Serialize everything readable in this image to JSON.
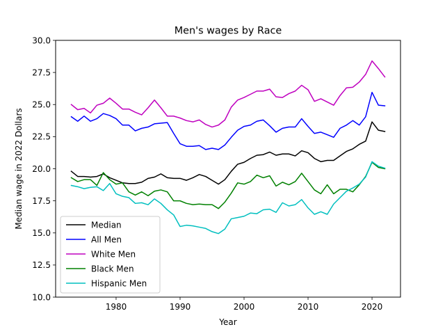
{
  "chart_data": {
    "type": "line",
    "title": "Men's wages by Race",
    "xlabel": "Year",
    "ylabel": "Median wage in 2022 Dollars",
    "xlim": [
      1970.55,
      2024.45
    ],
    "ylim": [
      10.0,
      30.0
    ],
    "xticks": [
      1980,
      1990,
      2000,
      2010,
      2020
    ],
    "yticks": [
      10.0,
      12.5,
      15.0,
      17.5,
      20.0,
      22.5,
      25.0,
      27.5,
      30.0
    ],
    "legend_position": "lower-left",
    "grid": false,
    "x": [
      1973,
      1974,
      1975,
      1976,
      1977,
      1978,
      1979,
      1980,
      1981,
      1982,
      1983,
      1984,
      1985,
      1986,
      1987,
      1988,
      1989,
      1990,
      1991,
      1992,
      1993,
      1994,
      1995,
      1996,
      1997,
      1998,
      1999,
      2000,
      2001,
      2002,
      2003,
      2004,
      2005,
      2006,
      2007,
      2008,
      2009,
      2010,
      2011,
      2012,
      2013,
      2014,
      2015,
      2016,
      2017,
      2018,
      2019,
      2020,
      2021,
      2022
    ],
    "series": [
      {
        "name": "Median",
        "color": "#000000",
        "values": [
          19.8,
          19.4,
          19.4,
          19.35,
          19.4,
          19.6,
          19.3,
          19.1,
          18.9,
          18.85,
          18.85,
          18.95,
          19.25,
          19.35,
          19.6,
          19.3,
          19.25,
          19.25,
          19.1,
          19.3,
          19.55,
          19.4,
          19.1,
          18.8,
          19.15,
          19.8,
          20.35,
          20.5,
          20.8,
          21.05,
          21.1,
          21.3,
          21.05,
          21.15,
          21.15,
          21.0,
          21.4,
          21.25,
          20.8,
          20.55,
          20.65,
          20.65,
          21.0,
          21.35,
          21.55,
          21.9,
          22.15,
          23.65,
          23.0,
          22.9
        ]
      },
      {
        "name": "All Men",
        "color": "#0000ff",
        "values": [
          24.05,
          23.7,
          24.1,
          23.7,
          23.9,
          24.3,
          24.15,
          23.9,
          23.4,
          23.4,
          22.95,
          23.15,
          23.25,
          23.5,
          23.55,
          23.6,
          22.75,
          21.95,
          21.75,
          21.75,
          21.8,
          21.5,
          21.6,
          21.5,
          21.85,
          22.45,
          23.0,
          23.3,
          23.4,
          23.7,
          23.8,
          23.35,
          22.85,
          23.15,
          23.25,
          23.25,
          23.9,
          23.3,
          22.75,
          22.85,
          22.65,
          22.45,
          23.15,
          23.4,
          23.75,
          23.4,
          24.05,
          25.95,
          24.95,
          24.9
        ]
      },
      {
        "name": "White Men",
        "color": "#bf00bf",
        "values": [
          25.0,
          24.6,
          24.7,
          24.35,
          24.95,
          25.1,
          25.5,
          25.1,
          24.65,
          24.65,
          24.4,
          24.2,
          24.75,
          25.35,
          24.75,
          24.1,
          24.1,
          23.95,
          23.75,
          23.65,
          23.8,
          23.45,
          23.25,
          23.4,
          23.8,
          24.8,
          25.35,
          25.55,
          25.8,
          26.05,
          26.05,
          26.2,
          25.6,
          25.55,
          25.85,
          26.05,
          26.5,
          26.15,
          25.25,
          25.45,
          25.2,
          24.95,
          25.7,
          26.3,
          26.35,
          26.75,
          27.35,
          28.4,
          27.8,
          27.15
        ]
      },
      {
        "name": "Black Men",
        "color": "#008000",
        "values": [
          19.3,
          19.0,
          19.15,
          19.15,
          18.7,
          19.7,
          19.15,
          18.8,
          18.9,
          18.2,
          17.95,
          18.2,
          17.9,
          18.25,
          18.35,
          18.2,
          17.5,
          17.5,
          17.3,
          17.2,
          17.25,
          17.2,
          17.2,
          16.9,
          17.4,
          18.1,
          18.9,
          18.8,
          19.0,
          19.5,
          19.3,
          19.45,
          18.65,
          18.95,
          18.75,
          19.0,
          19.65,
          19.0,
          18.35,
          18.05,
          18.75,
          18.05,
          18.4,
          18.4,
          18.2,
          18.75,
          19.4,
          20.5,
          20.1,
          20.0
        ]
      },
      {
        "name": "Hispanic Men",
        "color": "#00bfbf",
        "values": [
          18.7,
          18.6,
          18.45,
          18.55,
          18.6,
          18.3,
          18.85,
          18.05,
          17.85,
          17.75,
          17.3,
          17.35,
          17.2,
          17.65,
          17.3,
          16.8,
          16.4,
          15.5,
          15.6,
          15.55,
          15.45,
          15.35,
          15.1,
          14.95,
          15.3,
          16.1,
          16.2,
          16.3,
          16.55,
          16.5,
          16.8,
          16.85,
          16.6,
          17.35,
          17.1,
          17.2,
          17.6,
          16.95,
          16.45,
          16.65,
          16.45,
          17.25,
          17.75,
          18.25,
          18.5,
          18.8,
          19.35,
          20.55,
          20.2,
          20.05
        ]
      }
    ]
  }
}
